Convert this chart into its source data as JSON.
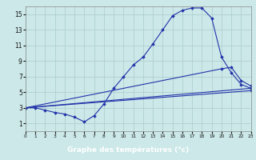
{
  "xlabel": "Graphe des températures (°c)",
  "xlim": [
    0,
    23
  ],
  "ylim": [
    0,
    16
  ],
  "xticks": [
    0,
    1,
    2,
    3,
    4,
    5,
    6,
    7,
    8,
    9,
    10,
    11,
    12,
    13,
    14,
    15,
    16,
    17,
    18,
    19,
    20,
    21,
    22,
    23
  ],
  "yticks": [
    1,
    3,
    5,
    7,
    9,
    11,
    13,
    15
  ],
  "background_color": "#cce8e8",
  "grid_color": "#aacccc",
  "line_color": "#2233aa",
  "label_bar_color": "#2233aa",
  "label_text_color": "#ffffff",
  "main_curve_x": [
    0,
    1,
    2,
    3,
    4,
    5,
    6,
    7,
    8,
    9,
    10,
    11,
    12,
    13,
    14,
    15,
    16,
    17,
    18,
    19,
    20,
    21,
    22,
    23
  ],
  "main_curve_y": [
    3.0,
    3.0,
    2.7,
    2.4,
    2.2,
    1.8,
    1.2,
    2.0,
    3.5,
    5.5,
    7.0,
    8.5,
    9.5,
    11.2,
    13.0,
    14.8,
    15.5,
    15.8,
    15.8,
    14.5,
    9.5,
    7.5,
    6.0,
    5.5
  ],
  "line2_x": [
    0,
    20,
    21,
    22,
    23
  ],
  "line2_y": [
    3.0,
    8.0,
    8.2,
    6.5,
    5.8
  ],
  "line3_x": [
    0,
    23
  ],
  "line3_y": [
    3.0,
    5.5
  ],
  "line4_x": [
    0,
    23
  ],
  "line4_y": [
    3.0,
    5.2
  ]
}
